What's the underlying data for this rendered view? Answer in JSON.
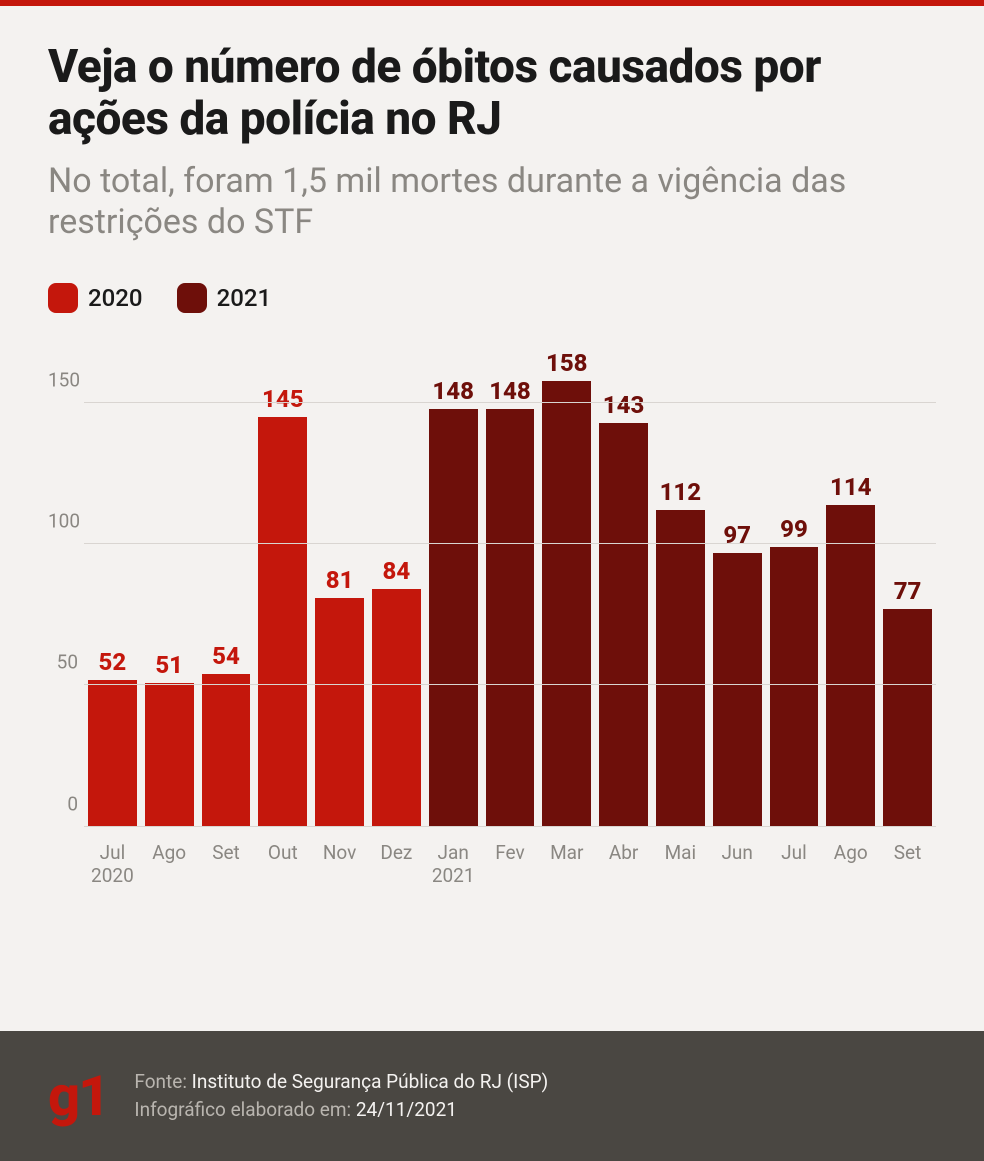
{
  "colors": {
    "accent": "#c4170c",
    "background": "#f4f2f0",
    "title": "#1a1a1a",
    "subtitle": "#8a8782",
    "grid": "#d9d5d1",
    "axis_text": "#8a8782",
    "footer_bg": "#4a4742",
    "footer_label": "#b9b5af",
    "footer_value": "#f4f2f0",
    "logo": "#c4170c"
  },
  "title": "Veja o número de óbitos causados por ações da polícia no RJ",
  "subtitle": "No total, foram 1,5 mil mortes durante a vigência das restrições do STF",
  "legend": [
    {
      "label": "2020",
      "color": "#c4170c"
    },
    {
      "label": "2021",
      "color": "#6e0f0a"
    }
  ],
  "chart": {
    "type": "bar",
    "y_axis": {
      "min": 0,
      "max": 170,
      "ticks": [
        0,
        50,
        100,
        150
      ]
    },
    "value_fontsize": 24,
    "value_fontweight": 800,
    "axis_fontsize": 19,
    "bars": [
      {
        "label": "Jul",
        "sublabel": "2020",
        "value": 52,
        "color": "#c4170c",
        "value_color": "#c4170c"
      },
      {
        "label": "Ago",
        "sublabel": "",
        "value": 51,
        "color": "#c4170c",
        "value_color": "#c4170c"
      },
      {
        "label": "Set",
        "sublabel": "",
        "value": 54,
        "color": "#c4170c",
        "value_color": "#c4170c"
      },
      {
        "label": "Out",
        "sublabel": "",
        "value": 145,
        "color": "#c4170c",
        "value_color": "#c4170c"
      },
      {
        "label": "Nov",
        "sublabel": "",
        "value": 81,
        "color": "#c4170c",
        "value_color": "#c4170c"
      },
      {
        "label": "Dez",
        "sublabel": "",
        "value": 84,
        "color": "#c4170c",
        "value_color": "#c4170c"
      },
      {
        "label": "Jan",
        "sublabel": "2021",
        "value": 148,
        "color": "#6e0f0a",
        "value_color": "#6e0f0a"
      },
      {
        "label": "Fev",
        "sublabel": "",
        "value": 148,
        "color": "#6e0f0a",
        "value_color": "#6e0f0a"
      },
      {
        "label": "Mar",
        "sublabel": "",
        "value": 158,
        "color": "#6e0f0a",
        "value_color": "#6e0f0a"
      },
      {
        "label": "Abr",
        "sublabel": "",
        "value": 143,
        "color": "#6e0f0a",
        "value_color": "#6e0f0a"
      },
      {
        "label": "Mai",
        "sublabel": "",
        "value": 112,
        "color": "#6e0f0a",
        "value_color": "#6e0f0a"
      },
      {
        "label": "Jun",
        "sublabel": "",
        "value": 97,
        "color": "#6e0f0a",
        "value_color": "#6e0f0a"
      },
      {
        "label": "Jul",
        "sublabel": "",
        "value": 99,
        "color": "#6e0f0a",
        "value_color": "#6e0f0a"
      },
      {
        "label": "Ago",
        "sublabel": "",
        "value": 114,
        "color": "#6e0f0a",
        "value_color": "#6e0f0a"
      },
      {
        "label": "Set",
        "sublabel": "",
        "value": 77,
        "color": "#6e0f0a",
        "value_color": "#6e0f0a"
      }
    ]
  },
  "footer": {
    "logo": "g1",
    "source_label": "Fonte: ",
    "source_value": "Instituto de Segurança Pública do RJ (ISP)",
    "credit_label": "Infográfico elaborado em: ",
    "credit_value": "24/11/2021"
  }
}
